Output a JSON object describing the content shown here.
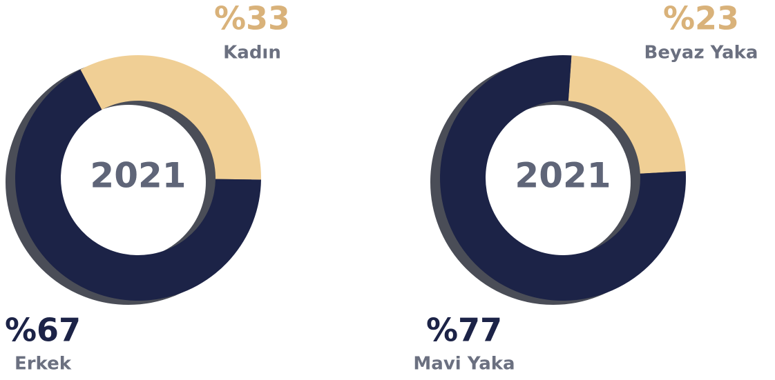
{
  "chart_data": [
    {
      "type": "donut",
      "center_label": "2021",
      "categories": [
        "Erkek",
        "Kadın"
      ],
      "values": [
        67,
        33
      ],
      "value_labels": [
        "%67",
        "%33"
      ],
      "colors": [
        "#1c2347",
        "#f0cf95"
      ],
      "label_colors": [
        "#1c2347",
        "#d9b27a"
      ]
    },
    {
      "type": "donut",
      "center_label": "2021",
      "categories": [
        "Mavi Yaka",
        "Beyaz Yaka"
      ],
      "values": [
        77,
        23
      ],
      "value_labels": [
        "%77",
        "%23"
      ],
      "colors": [
        "#1c2347",
        "#f0cf95"
      ],
      "label_colors": [
        "#1c2347",
        "#d9b27a"
      ]
    }
  ]
}
